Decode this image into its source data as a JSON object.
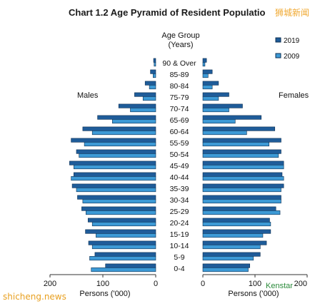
{
  "title": "Chart 1.2  Age Pyramid of Resident Populatio",
  "watermark_cn": "狮城新闻",
  "watermark_bottom": "shicheng.news",
  "watermark_right": "Kenstar",
  "colors": {
    "2019": "#1f5c99",
    "2009": "#3d9ad6",
    "edge": "#0d2f52"
  },
  "chart_data": {
    "type": "bar",
    "orientation": "horizontal-pyramid",
    "title": "Chart 1.2  Age Pyramid of Resident Populatio",
    "category_title": [
      "Age Group",
      "(Years)"
    ],
    "categories": [
      "90 & Over",
      "85-89",
      "80-84",
      "75-79",
      "70-74",
      "65-69",
      "60-64",
      "55-59",
      "50-54",
      "45-49",
      "40-44",
      "35-39",
      "30-34",
      "25-29",
      "20-24",
      "15-19",
      "10-14",
      "5-9",
      "0-4"
    ],
    "left_label": "Males",
    "right_label": "Females",
    "xlabel_left": "Persons ('000)",
    "xlabel_right": "Persons ('000)",
    "xlim": [
      0,
      200
    ],
    "x_ticks": [
      "200",
      "100",
      "0"
    ],
    "x_ticks_right": [
      "0",
      "100",
      "200"
    ],
    "legend": [
      "2019",
      "2009"
    ],
    "legend_position": "top-right",
    "series": [
      {
        "name": "2019",
        "side": "males",
        "values": [
          4,
          10,
          20,
          40,
          70,
          110,
          138,
          160,
          150,
          163,
          155,
          158,
          148,
          140,
          128,
          133,
          127,
          115,
          95
        ]
      },
      {
        "name": "2009",
        "side": "males",
        "values": [
          3,
          5,
          12,
          24,
          48,
          82,
          120,
          135,
          145,
          155,
          160,
          150,
          138,
          132,
          120,
          113,
          120,
          125,
          122
        ]
      },
      {
        "name": "2019",
        "side": "females",
        "values": [
          7,
          18,
          30,
          50,
          76,
          112,
          138,
          150,
          150,
          155,
          152,
          155,
          150,
          140,
          128,
          130,
          122,
          110,
          90
        ]
      },
      {
        "name": "2009",
        "side": "females",
        "values": [
          4,
          10,
          18,
          30,
          50,
          62,
          84,
          127,
          145,
          155,
          155,
          150,
          150,
          148,
          130,
          115,
          110,
          97,
          87
        ]
      }
    ]
  }
}
